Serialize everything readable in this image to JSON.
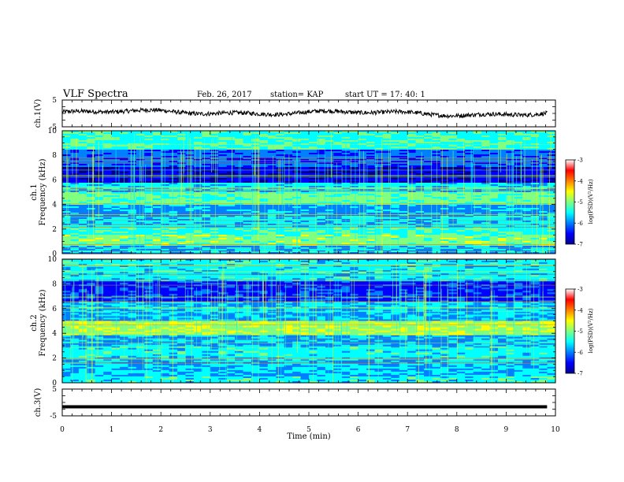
{
  "header": {
    "title": "VLF Spectra",
    "date": "Feb. 26, 2017",
    "station": "station= KAP",
    "start": "start  UT =   17: 40: 1"
  },
  "chart_data": [
    {
      "type": "line",
      "id": "ch1",
      "ylabel": "ch.1(V)",
      "ylim": [
        -5,
        5
      ],
      "y_ticks": [
        "5",
        "-5"
      ],
      "xlim": [
        0,
        10
      ],
      "series_extent_min": 9.83,
      "approx_baseline": 0.2,
      "approx_amplitude": 1.0,
      "color": "#000000"
    },
    {
      "type": "heatmap",
      "id": "ch1-spectrogram",
      "ylabel": "ch.1\nFrequency  (kHz)",
      "ylabel_line1": "ch.1",
      "ylabel_line2": "Frequency  (kHz)",
      "ylim": [
        0,
        10
      ],
      "y_ticks": [
        "0",
        "2",
        "4",
        "6",
        "8",
        "10"
      ],
      "xlim": [
        0,
        10
      ],
      "colorbar": {
        "label": "log(PSD)(V²/Hz)",
        "range": [
          -7,
          -3
        ],
        "ticks": [
          "-3",
          "-4",
          "-5",
          "-6",
          "-7"
        ],
        "colormap": "jet"
      },
      "notes": "dark blue band near 6-7 kHz, strong green-yellow bands near 0.5-2 kHz and 4-5 kHz, many vertical sferic spikes"
    },
    {
      "type": "heatmap",
      "id": "ch2-spectrogram",
      "ylabel": "ch.2\nFrequency  (kHz)",
      "ylabel_line1": "ch.2",
      "ylabel_line2": "Frequency  (kHz)",
      "ylim": [
        0,
        10
      ],
      "y_ticks": [
        "0",
        "2",
        "4",
        "6",
        "8",
        "10"
      ],
      "xlim": [
        0,
        10
      ],
      "colorbar": {
        "label": "log(PSD)(V²/Hz)",
        "range": [
          -7,
          -3
        ],
        "ticks": [
          "-3",
          "-4",
          "-5",
          "-6",
          "-7"
        ],
        "colormap": "jet"
      },
      "notes": "strong green band near 4-4.5 kHz, dark blue band near 7 kHz, vertical sferic spikes"
    },
    {
      "type": "line",
      "id": "ch3",
      "ylabel": "ch.3(V)",
      "ylim": [
        -5,
        5
      ],
      "y_ticks": [
        "5",
        "-5"
      ],
      "xlim": [
        0,
        10
      ],
      "xlabel": "Time  (min)",
      "x_ticks": [
        "0",
        "1",
        "2",
        "3",
        "4",
        "5",
        "6",
        "7",
        "8",
        "9",
        "10"
      ],
      "series_extent_min": 9.83,
      "constant_value": -1.6,
      "color": "#000000"
    }
  ],
  "colors": {
    "jet": [
      "#00008f",
      "#0000ff",
      "#0080ff",
      "#00ffff",
      "#80ff80",
      "#ffff00",
      "#ff8000",
      "#ff0000",
      "#800000"
    ]
  }
}
